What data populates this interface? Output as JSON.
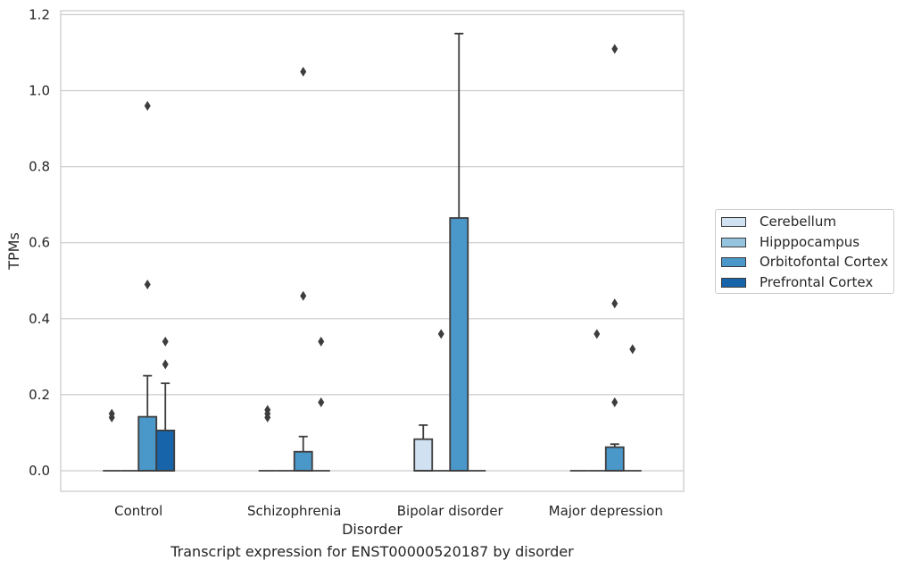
{
  "chart_data": {
    "type": "box",
    "caption": "Transcript expression for ENST00000520187 by disorder",
    "xlabel": "Disorder",
    "ylabel": "TPMs",
    "ylim": [
      -0.055,
      1.21
    ],
    "yticks": [
      0.0,
      0.2,
      0.4,
      0.6,
      0.8,
      1.0,
      1.2
    ],
    "ytick_labels": [
      "0.0",
      "0.2",
      "0.4",
      "0.6",
      "0.8",
      "1.0",
      "1.2"
    ],
    "grid": true,
    "legend_position": "right",
    "categories": [
      "Control",
      "Schizophrenia",
      "Bipolar disorder",
      "Major depression"
    ],
    "series": [
      {
        "name": "Cerebellum",
        "color": "#d0e1f2",
        "boxes": [
          {
            "q1": 0,
            "median": 0,
            "q3": 0,
            "whisker_low": 0,
            "whisker_high": 0,
            "outliers": [
              0.14,
              0.15
            ]
          },
          {
            "q1": 0,
            "median": 0,
            "q3": 0,
            "whisker_low": 0,
            "whisker_high": 0,
            "outliers": [
              0.14,
              0.15,
              0.16
            ]
          },
          {
            "q1": 0,
            "median": 0,
            "q3": 0.083,
            "whisker_low": 0,
            "whisker_high": 0.12,
            "outliers": []
          },
          {
            "q1": 0,
            "median": 0,
            "q3": 0,
            "whisker_low": 0,
            "whisker_high": 0,
            "outliers": []
          }
        ]
      },
      {
        "name": "Hipppocampus",
        "color": "#94c4df",
        "boxes": [
          {
            "q1": 0,
            "median": 0,
            "q3": 0,
            "whisker_low": 0,
            "whisker_high": 0,
            "outliers": []
          },
          {
            "q1": 0,
            "median": 0,
            "q3": 0,
            "whisker_low": 0,
            "whisker_high": 0,
            "outliers": []
          },
          {
            "q1": 0,
            "median": 0,
            "q3": 0,
            "whisker_low": 0,
            "whisker_high": 0,
            "outliers": [
              0.36
            ]
          },
          {
            "q1": 0,
            "median": 0,
            "q3": 0,
            "whisker_low": 0,
            "whisker_high": 0,
            "outliers": [
              0.36
            ]
          }
        ]
      },
      {
        "name": "Orbitofontal Cortex",
        "color": "#4a98c9",
        "boxes": [
          {
            "q1": 0,
            "median": 0,
            "q3": 0.142,
            "whisker_low": 0,
            "whisker_high": 0.25,
            "outliers": [
              0.49,
              0.96
            ]
          },
          {
            "q1": 0,
            "median": 0,
            "q3": 0.05,
            "whisker_low": 0,
            "whisker_high": 0.09,
            "outliers": [
              0.46,
              1.05
            ]
          },
          {
            "q1": 0,
            "median": 0,
            "q3": 0.665,
            "whisker_low": 0,
            "whisker_high": 1.15,
            "outliers": []
          },
          {
            "q1": 0,
            "median": 0,
            "q3": 0.062,
            "whisker_low": 0,
            "whisker_high": 0.07,
            "outliers": [
              0.18,
              0.44,
              1.11
            ]
          }
        ]
      },
      {
        "name": "Prefrontal Cortex",
        "color": "#1764ab",
        "boxes": [
          {
            "q1": 0,
            "median": 0,
            "q3": 0.106,
            "whisker_low": 0,
            "whisker_high": 0.23,
            "outliers": [
              0.28,
              0.34
            ]
          },
          {
            "q1": 0,
            "median": 0,
            "q3": 0,
            "whisker_low": 0,
            "whisker_high": 0,
            "outliers": [
              0.18,
              0.34
            ]
          },
          {
            "q1": 0,
            "median": 0,
            "q3": 0,
            "whisker_low": 0,
            "whisker_high": 0,
            "outliers": []
          },
          {
            "q1": 0,
            "median": 0,
            "q3": 0,
            "whisker_low": 0,
            "whisker_high": 0,
            "outliers": [
              0.32
            ]
          }
        ]
      }
    ]
  }
}
